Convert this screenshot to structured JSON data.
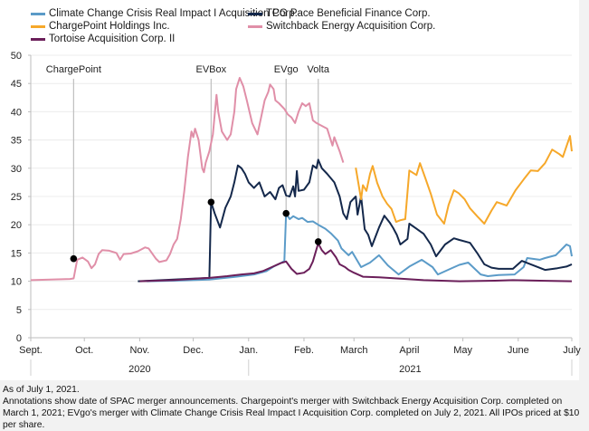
{
  "chart_data": {
    "type": "line",
    "title": "",
    "xlabel": "",
    "ylabel": "",
    "x_unit": "days since Sept. 1, 2020",
    "xlim": [
      0,
      303
    ],
    "ylim": [
      0,
      50
    ],
    "yticks": [
      0,
      5,
      10,
      15,
      20,
      25,
      30,
      35,
      40,
      45,
      50
    ],
    "grid": true,
    "legend_position": "top",
    "month_ticks": [
      {
        "label": "Sept.",
        "day": 0
      },
      {
        "label": "Oct.",
        "day": 30
      },
      {
        "label": "Nov.",
        "day": 61
      },
      {
        "label": "Dec.",
        "day": 91
      },
      {
        "label": "Jan.",
        "day": 122
      },
      {
        "label": "Feb.",
        "day": 153
      },
      {
        "label": "March",
        "day": 181
      },
      {
        "label": "April",
        "day": 212
      },
      {
        "label": "May",
        "day": 242
      },
      {
        "label": "June",
        "day": 273
      },
      {
        "label": "July",
        "day": 303
      }
    ],
    "year_groups": [
      {
        "label": "2020",
        "start_day": 0,
        "end_day": 122
      },
      {
        "label": "2021",
        "start_day": 122,
        "end_day": 303
      }
    ],
    "series": [
      {
        "name": "Climate Change Crisis Real Impact I Acquisition Corp.",
        "color": "#5b9bc8",
        "points": [
          [
            65,
            10
          ],
          [
            80,
            10.1
          ],
          [
            100,
            10.3
          ],
          [
            115,
            10.8
          ],
          [
            125,
            11.2
          ],
          [
            132,
            11.8
          ],
          [
            136,
            12.6
          ],
          [
            140,
            13.2
          ],
          [
            142,
            13.6
          ],
          [
            143,
            22
          ],
          [
            145,
            21
          ],
          [
            147,
            21.5
          ],
          [
            150,
            21
          ],
          [
            152,
            21.2
          ],
          [
            155,
            20.5
          ],
          [
            158,
            20.6
          ],
          [
            161,
            20
          ],
          [
            165,
            19.3
          ],
          [
            168,
            18.5
          ],
          [
            172,
            17.2
          ],
          [
            174,
            15.8
          ],
          [
            176,
            15.2
          ],
          [
            178,
            14.6
          ],
          [
            180,
            15.2
          ],
          [
            185,
            12.5
          ],
          [
            190,
            13.3
          ],
          [
            195,
            14.6
          ],
          [
            200,
            12.8
          ],
          [
            206,
            11.2
          ],
          [
            212,
            12.6
          ],
          [
            219,
            13.8
          ],
          [
            225,
            12.5
          ],
          [
            228,
            11.2
          ],
          [
            235,
            12.2
          ],
          [
            240,
            12.9
          ],
          [
            245,
            13.3
          ],
          [
            252,
            11.2
          ],
          [
            256,
            10.9
          ],
          [
            262,
            11.1
          ],
          [
            271,
            11.2
          ],
          [
            276,
            12.5
          ],
          [
            278,
            14.1
          ],
          [
            285,
            13.8
          ],
          [
            288,
            14.1
          ],
          [
            294,
            14.6
          ],
          [
            300,
            16.5
          ],
          [
            302,
            16.2
          ],
          [
            303,
            14.4
          ]
        ]
      },
      {
        "name": "TPG Pace Beneficial Finance Corp.",
        "color": "#14284b",
        "points": [
          [
            60,
            10
          ],
          [
            80,
            10.3
          ],
          [
            100,
            10.6
          ],
          [
            101,
            24
          ],
          [
            103,
            22
          ],
          [
            106,
            19.5
          ],
          [
            109,
            23
          ],
          [
            112,
            25
          ],
          [
            114,
            27.5
          ],
          [
            116,
            30.5
          ],
          [
            118,
            30
          ],
          [
            120,
            29
          ],
          [
            122,
            27.5
          ],
          [
            125,
            26.5
          ],
          [
            128,
            27.5
          ],
          [
            131,
            25
          ],
          [
            134,
            25.8
          ],
          [
            137,
            24.5
          ],
          [
            139,
            26.5
          ],
          [
            141,
            27
          ],
          [
            143,
            25.2
          ],
          [
            145,
            25
          ],
          [
            147,
            26.8
          ],
          [
            148,
            25
          ],
          [
            149,
            29.5
          ],
          [
            150,
            26
          ],
          [
            153,
            26.2
          ],
          [
            156,
            27.5
          ],
          [
            158,
            30.5
          ],
          [
            160,
            30
          ],
          [
            161,
            31.5
          ],
          [
            163,
            30
          ],
          [
            166,
            29
          ],
          [
            170,
            27.5
          ],
          [
            173,
            25
          ],
          [
            175,
            22
          ],
          [
            177,
            21
          ],
          [
            179,
            24
          ],
          [
            182,
            25
          ],
          [
            183,
            21.8
          ],
          [
            185,
            25
          ],
          [
            187,
            19.2
          ],
          [
            189,
            18.2
          ],
          [
            191,
            16.2
          ],
          [
            195,
            19.5
          ],
          [
            198,
            21.6
          ],
          [
            201,
            20.4
          ],
          [
            203,
            19.4
          ],
          [
            205,
            18.2
          ],
          [
            207,
            16.5
          ],
          [
            211,
            17.5
          ],
          [
            212,
            20.2
          ],
          [
            216,
            19.3
          ],
          [
            220,
            18.4
          ],
          [
            224,
            16.5
          ],
          [
            227,
            14.4
          ],
          [
            232,
            16.5
          ],
          [
            237,
            17.6
          ],
          [
            240,
            17.3
          ],
          [
            246,
            16.8
          ],
          [
            250,
            15
          ],
          [
            254,
            13
          ],
          [
            258,
            12.4
          ],
          [
            262,
            12.2
          ],
          [
            270,
            12.2
          ],
          [
            275,
            13.6
          ],
          [
            280,
            13
          ],
          [
            288,
            12
          ],
          [
            295,
            12.3
          ],
          [
            300,
            12.6
          ],
          [
            303,
            13
          ]
        ]
      },
      {
        "name": "ChargePoint Holdings Inc.",
        "color": "#f6a82a",
        "points": [
          [
            182,
            30.1
          ],
          [
            185,
            24.5
          ],
          [
            186,
            27
          ],
          [
            188,
            26
          ],
          [
            190,
            29
          ],
          [
            191.5,
            30.4
          ],
          [
            194,
            27.4
          ],
          [
            197,
            25
          ],
          [
            199.6,
            23.7
          ],
          [
            202,
            22.8
          ],
          [
            204.6,
            20.5
          ],
          [
            207,
            20.8
          ],
          [
            209.7,
            21
          ],
          [
            212,
            29.6
          ],
          [
            216,
            28.8
          ],
          [
            218,
            30.9
          ],
          [
            221,
            28.2
          ],
          [
            224,
            25.5
          ],
          [
            227.5,
            21.8
          ],
          [
            231.5,
            20.2
          ],
          [
            234,
            23.5
          ],
          [
            237,
            26.1
          ],
          [
            239.6,
            25.6
          ],
          [
            243,
            24.5
          ],
          [
            246,
            22.9
          ],
          [
            250,
            21.5
          ],
          [
            254,
            20.2
          ],
          [
            258,
            22.5
          ],
          [
            261,
            24
          ],
          [
            266.5,
            23.4
          ],
          [
            271.5,
            26.1
          ],
          [
            276,
            28
          ],
          [
            280,
            29.6
          ],
          [
            284,
            29.5
          ],
          [
            288,
            30.9
          ],
          [
            292,
            33.3
          ],
          [
            296,
            32.5
          ],
          [
            298,
            32
          ],
          [
            302,
            35.7
          ],
          [
            303,
            33
          ]
        ]
      },
      {
        "name": "Switchback Energy Acquisition Corp.",
        "color": "#e08fa8",
        "points": [
          [
            0,
            10.2
          ],
          [
            22,
            10.4
          ],
          [
            24,
            10.5
          ],
          [
            26,
            13.8
          ],
          [
            29,
            14.2
          ],
          [
            32,
            13.5
          ],
          [
            34,
            12.3
          ],
          [
            36,
            13
          ],
          [
            38,
            14.8
          ],
          [
            40,
            15.5
          ],
          [
            44,
            15.4
          ],
          [
            48,
            15
          ],
          [
            50,
            13.8
          ],
          [
            52,
            14.8
          ],
          [
            56,
            14.9
          ],
          [
            60,
            15.3
          ],
          [
            64,
            16
          ],
          [
            66,
            15.8
          ],
          [
            70,
            14
          ],
          [
            72,
            13.4
          ],
          [
            76,
            13.7
          ],
          [
            78,
            14.8
          ],
          [
            80,
            16.5
          ],
          [
            82,
            17.5
          ],
          [
            84,
            21
          ],
          [
            86,
            26
          ],
          [
            88,
            32
          ],
          [
            90,
            36.5
          ],
          [
            91,
            35.5
          ],
          [
            92,
            37
          ],
          [
            94,
            35
          ],
          [
            96,
            30
          ],
          [
            97,
            29.3
          ],
          [
            98,
            31
          ],
          [
            100,
            33
          ],
          [
            102,
            36
          ],
          [
            104,
            43
          ],
          [
            105,
            40
          ],
          [
            107,
            36.5
          ],
          [
            110,
            35
          ],
          [
            112,
            36
          ],
          [
            114,
            40
          ],
          [
            115,
            44
          ],
          [
            117,
            46
          ],
          [
            119,
            44.5
          ],
          [
            121,
            42
          ],
          [
            124,
            38
          ],
          [
            127,
            36
          ],
          [
            129,
            39
          ],
          [
            131,
            42
          ],
          [
            133,
            43.5
          ],
          [
            134,
            44.8
          ],
          [
            136,
            44
          ],
          [
            137,
            42
          ],
          [
            139,
            41.5
          ],
          [
            142,
            40.5
          ],
          [
            144,
            39.5
          ],
          [
            146,
            39
          ],
          [
            148,
            38
          ],
          [
            150,
            40
          ],
          [
            152,
            41.5
          ],
          [
            154,
            41
          ],
          [
            156,
            41.5
          ],
          [
            158,
            38.5
          ],
          [
            160,
            38
          ],
          [
            163,
            37.5
          ],
          [
            166,
            37
          ],
          [
            169,
            34
          ],
          [
            170,
            35.5
          ],
          [
            173,
            33
          ],
          [
            175,
            31
          ]
        ]
      },
      {
        "name": "Tortoise Acquisition Corp. II",
        "color": "#6b1f5a",
        "points": [
          [
            61,
            10
          ],
          [
            80,
            10.2
          ],
          [
            100,
            10.6
          ],
          [
            110,
            10.9
          ],
          [
            118,
            11.2
          ],
          [
            125,
            11.4
          ],
          [
            130,
            11.8
          ],
          [
            135,
            12.5
          ],
          [
            140,
            13.2
          ],
          [
            143,
            13.5
          ],
          [
            146,
            12.2
          ],
          [
            149,
            11.3
          ],
          [
            153,
            11.5
          ],
          [
            156,
            12.2
          ],
          [
            158,
            13.5
          ],
          [
            161,
            16.7
          ],
          [
            163,
            15.5
          ],
          [
            165,
            14.8
          ],
          [
            168,
            15.5
          ],
          [
            171,
            14.2
          ],
          [
            173,
            13
          ],
          [
            176,
            12.5
          ],
          [
            178,
            12
          ],
          [
            181,
            11.5
          ],
          [
            186,
            10.8
          ],
          [
            195,
            10.7
          ],
          [
            205,
            10.5
          ],
          [
            220,
            10.2
          ],
          [
            240,
            10
          ],
          [
            260,
            10.1
          ],
          [
            270,
            10.2
          ],
          [
            285,
            10.1
          ],
          [
            303,
            10
          ]
        ]
      }
    ],
    "annotations": [
      {
        "label": "ChargePoint",
        "day": 24,
        "value": 14
      },
      {
        "label": "EVBox",
        "day": 101,
        "value": 24
      },
      {
        "label": "EVgo",
        "day": 143,
        "value": 22
      },
      {
        "label": "Volta",
        "day": 161,
        "value": 17
      }
    ]
  },
  "legend": [
    {
      "label": "Climate Change Crisis Real Impact I Acquisition Corp.",
      "color": "#5b9bc8"
    },
    {
      "label": "TPG Pace Beneficial Finance Corp.",
      "color": "#14284b"
    },
    {
      "label": "ChargePoint Holdings Inc.",
      "color": "#f6a82a"
    },
    {
      "label": "Switchback Energy Acquisition Corp.",
      "color": "#e08fa8"
    },
    {
      "label": "Tortoise Acquisition Corp. II",
      "color": "#6b1f5a"
    }
  ],
  "footnote": {
    "line1": "As of July 1, 2021.",
    "line2": "Annotations show date of SPAC merger announcements. Chargepoint's merger with Switchback Energy Acquisition Corp. completed on March 1, 2021; EVgo's merger with Climate Change Crisis Real Impact I Acquisition Corp. completed on July 2, 2021. All IPOs priced at $10 per share."
  }
}
